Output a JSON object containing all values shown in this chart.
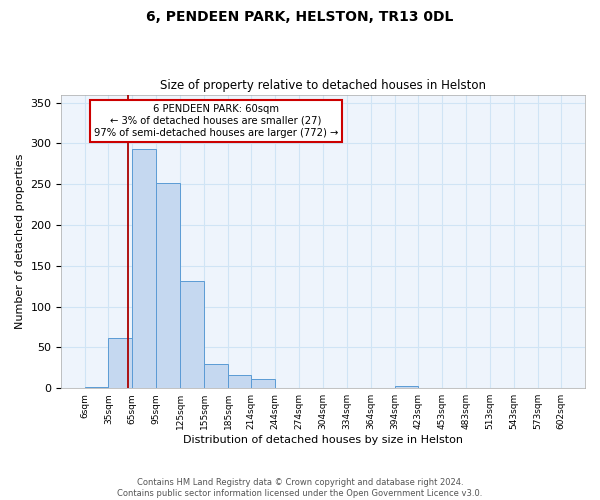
{
  "title1": "6, PENDEEN PARK, HELSTON, TR13 0DL",
  "title2": "Size of property relative to detached houses in Helston",
  "xlabel": "Distribution of detached houses by size in Helston",
  "ylabel": "Number of detached properties",
  "footnote1": "Contains HM Land Registry data © Crown copyright and database right 2024.",
  "footnote2": "Contains public sector information licensed under the Open Government Licence v3.0.",
  "bin_edges": [
    6,
    35,
    65,
    95,
    125,
    155,
    185,
    214,
    244,
    274,
    304,
    334,
    364,
    394,
    423,
    453,
    483,
    513,
    543,
    573,
    602
  ],
  "bar_heights": [
    2,
    62,
    293,
    252,
    132,
    30,
    16,
    11,
    0,
    0,
    0,
    0,
    0,
    3,
    0,
    0,
    0,
    0,
    0,
    0
  ],
  "bar_color": "#c5d8f0",
  "bar_edge_color": "#5b9bd5",
  "grid_color": "#d0e4f5",
  "property_line_x": 60,
  "property_line_color": "#aa0000",
  "annotation_text": "6 PENDEEN PARK: 60sqm\n← 3% of detached houses are smaller (27)\n97% of semi-detached houses are larger (772) →",
  "annotation_box_color": "#ffffff",
  "annotation_box_edge": "#cc0000",
  "ylim": [
    0,
    360
  ],
  "yticks": [
    0,
    50,
    100,
    150,
    200,
    250,
    300,
    350
  ]
}
